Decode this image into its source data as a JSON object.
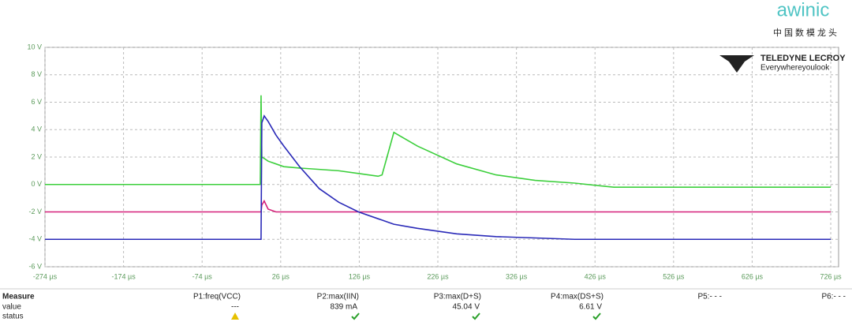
{
  "chart_data": {
    "type": "line",
    "x": [
      -274,
      0,
      1,
      2,
      5,
      10,
      20,
      30,
      50,
      75,
      100,
      125,
      150,
      155,
      170,
      200,
      250,
      300,
      350,
      400,
      450,
      500,
      600,
      726
    ],
    "series": [
      {
        "color": "#3ccf3c",
        "values": [
          0,
          0,
          6.5,
          2.0,
          1.9,
          1.7,
          1.5,
          1.3,
          1.2,
          1.1,
          1.0,
          0.8,
          0.6,
          0.7,
          3.8,
          2.8,
          1.5,
          0.7,
          0.3,
          0.1,
          -0.2,
          -0.2,
          -0.2,
          -0.2
        ]
      },
      {
        "color": "#d6207a",
        "values": [
          -2,
          -2,
          -2,
          -1.5,
          -1.2,
          -1.8,
          -2,
          -2,
          -2,
          -2,
          -2,
          -2,
          -2,
          -2,
          -2,
          -2,
          -2,
          -2,
          -2,
          -2,
          -2,
          -2,
          -2,
          -2
        ]
      },
      {
        "color": "#2a2ab8",
        "values": [
          -4,
          -4,
          -4,
          4.5,
          5,
          4.6,
          3.6,
          2.8,
          1.3,
          -0.3,
          -1.3,
          -2.0,
          -2.5,
          -2.6,
          -2.9,
          -3.2,
          -3.6,
          -3.8,
          -3.9,
          -4,
          -4,
          -4,
          -4,
          -4
        ]
      }
    ],
    "xlim": [
      -274,
      736
    ],
    "xticks": [
      {
        "value": -274,
        "label": "-274 µs"
      },
      {
        "value": -174,
        "label": "-174 µs"
      },
      {
        "value": -74,
        "label": "-74 µs"
      },
      {
        "value": 26,
        "label": "26 µs"
      },
      {
        "value": 126,
        "label": "126 µs"
      },
      {
        "value": 226,
        "label": "226 µs"
      },
      {
        "value": 326,
        "label": "326 µs"
      },
      {
        "value": 426,
        "label": "426 µs"
      },
      {
        "value": 526,
        "label": "526 µs"
      },
      {
        "value": 626,
        "label": "626 µs"
      },
      {
        "value": 726,
        "label": "726 µs"
      }
    ],
    "ylim": [
      -6,
      10
    ],
    "yticks": [
      {
        "value": 10,
        "label": "10 V"
      },
      {
        "value": 8,
        "label": "8 V"
      },
      {
        "value": 6,
        "label": "6 V"
      },
      {
        "value": 4,
        "label": "4 V"
      },
      {
        "value": 2,
        "label": "2 V"
      },
      {
        "value": 0,
        "label": "0 V"
      },
      {
        "value": -2,
        "label": "-2 V"
      },
      {
        "value": -4,
        "label": "-4 V"
      },
      {
        "value": -6,
        "label": "-6 V"
      }
    ],
    "grid": true
  },
  "logo": {
    "brand": "TELEDYNE LECROY",
    "tagline": "Everywhereyoulook",
    "corner": "awinic",
    "corner_sub": "中国数模龙头"
  },
  "measure": {
    "title": "Measure",
    "row_labels": [
      "value",
      "status"
    ],
    "params": [
      "P1:freq(VCC)",
      "P2:max(IIN)",
      "P3:max(D+S)",
      "P4:max(DS+S)",
      "P5:- - -",
      "P6:- - -"
    ],
    "values": [
      "---",
      "839 mA",
      "45.04 V",
      "6.61 V"
    ]
  }
}
